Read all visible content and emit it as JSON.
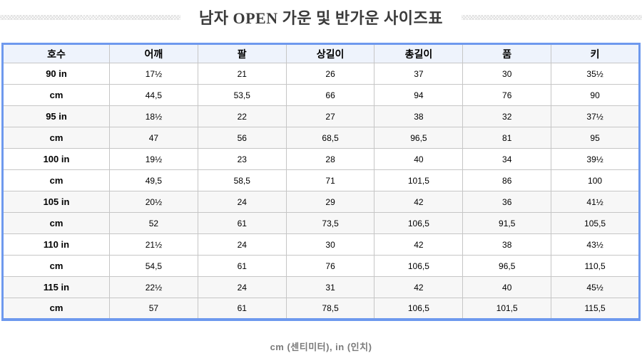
{
  "page": {
    "title": "남자 OPEN 가운 및 반가운 사이즈표",
    "footnote": "cm (센티미터), in (인치)"
  },
  "chart_data": {
    "type": "table",
    "title": "남자 OPEN 가운 및 반가운 사이즈표",
    "columns": [
      "호수",
      "어깨",
      "팔",
      "상길이",
      "총길이",
      "품",
      "키"
    ],
    "rows": [
      {
        "cells": [
          "90 in",
          "17½",
          "21",
          "26",
          "37",
          "30",
          "35½"
        ],
        "shaded": false
      },
      {
        "cells": [
          "cm",
          "44,5",
          "53,5",
          "66",
          "94",
          "76",
          "90"
        ],
        "shaded": false
      },
      {
        "cells": [
          "95 in",
          "18½",
          "22",
          "27",
          "38",
          "32",
          "37½"
        ],
        "shaded": true
      },
      {
        "cells": [
          "cm",
          "47",
          "56",
          "68,5",
          "96,5",
          "81",
          "95"
        ],
        "shaded": true
      },
      {
        "cells": [
          "100 in",
          "19½",
          "23",
          "28",
          "40",
          "34",
          "39½"
        ],
        "shaded": false
      },
      {
        "cells": [
          "cm",
          "49,5",
          "58,5",
          "71",
          "101,5",
          "86",
          "100"
        ],
        "shaded": false
      },
      {
        "cells": [
          "105 in",
          "20½",
          "24",
          "29",
          "42",
          "36",
          "41½"
        ],
        "shaded": true
      },
      {
        "cells": [
          "cm",
          "52",
          "61",
          "73,5",
          "106,5",
          "91,5",
          "105,5"
        ],
        "shaded": true
      },
      {
        "cells": [
          "110 in",
          "21½",
          "24",
          "30",
          "42",
          "38",
          "43½"
        ],
        "shaded": false
      },
      {
        "cells": [
          "cm",
          "54,5",
          "61",
          "76",
          "106,5",
          "96,5",
          "110,5"
        ],
        "shaded": false
      },
      {
        "cells": [
          "115 in",
          "22½",
          "24",
          "31",
          "42",
          "40",
          "45½"
        ],
        "shaded": true
      },
      {
        "cells": [
          "cm",
          "57",
          "61",
          "78,5",
          "106,5",
          "101,5",
          "115,5"
        ],
        "shaded": true
      }
    ],
    "note": "cm (센티미터), in (인치)",
    "layout": {
      "header_background": "#eef3fc",
      "shaded_row_background": "#f7f7f7",
      "outer_border_color": "#6e99ee",
      "cell_border_color": "#c6c6c6"
    }
  }
}
